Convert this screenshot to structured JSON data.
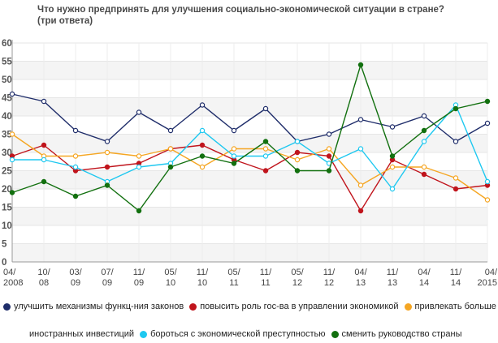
{
  "title_line1": "Что нужно предпринять для улучшения социально-экономической ситуации в стране?",
  "title_line2": "(три ответа)",
  "chart_data": {
    "type": "line",
    "title": "Что нужно предпринять для улучшения социально-экономической ситуации в стране? (три ответа)",
    "xlabel": "",
    "ylabel": "",
    "ylim": [
      0,
      60
    ],
    "yticks": [
      0,
      5,
      10,
      15,
      20,
      25,
      30,
      35,
      40,
      45,
      50,
      55,
      60
    ],
    "grid": "horizontal bands",
    "legend_position": "bottom",
    "categories": [
      [
        "04/",
        "2008"
      ],
      [
        "10/",
        "08"
      ],
      [
        "03/",
        "09"
      ],
      [
        "07/",
        "09"
      ],
      [
        "11/",
        "09"
      ],
      [
        "05/",
        "10"
      ],
      [
        "11/",
        "10"
      ],
      [
        "05/",
        "11"
      ],
      [
        "11/",
        "11"
      ],
      [
        "05/",
        "12"
      ],
      [
        "11/",
        "12"
      ],
      [
        "04/",
        "13"
      ],
      [
        "11/",
        "13"
      ],
      [
        "04/",
        "14"
      ],
      [
        "11/",
        "14"
      ],
      [
        "04/",
        "2015"
      ]
    ],
    "series": [
      {
        "name": "улучшить механизмы функц-ния законов",
        "color": "#1f2d6a",
        "values": [
          46,
          44,
          36,
          33,
          41,
          36,
          43,
          36,
          42,
          33,
          35,
          39,
          37,
          40,
          33,
          38
        ]
      },
      {
        "name": "повысить роль гос-ва в управлении экономикой",
        "color": "#c0141c",
        "values": [
          29,
          32,
          25,
          26,
          27,
          31,
          32,
          28,
          25,
          30,
          29,
          14,
          28,
          24,
          20,
          21
        ]
      },
      {
        "name": "привлекать больше иностранных инвестиций",
        "color": "#f5a623",
        "values": [
          35,
          29,
          29,
          30,
          29,
          31,
          26,
          31,
          31,
          28,
          31,
          21,
          26,
          26,
          23,
          17
        ]
      },
      {
        "name": "бороться с экономической преступностью",
        "color": "#1ec8f0",
        "values": [
          28,
          28,
          26,
          22,
          26,
          27,
          36,
          29,
          29,
          33,
          27,
          31,
          20,
          33,
          43,
          22
        ]
      },
      {
        "name": "сменить руководство страны",
        "color": "#12700f",
        "values": [
          19,
          22,
          18,
          21,
          14,
          26,
          29,
          27,
          33,
          25,
          25,
          54,
          29,
          36,
          42,
          44
        ]
      }
    ]
  },
  "legend": {
    "row1": [
      {
        "label": "улучшить механизмы функц-ния законов",
        "color": "#1f2d6a"
      },
      {
        "label": "повысить роль гос-ва в управлении экономикой",
        "color": "#c0141c"
      },
      {
        "label": "привлекать больше",
        "color": "#f5a623"
      }
    ],
    "row2_cont": "иностранных инвестиций",
    "row2": [
      {
        "label": "бороться с экономической преступностью",
        "color": "#1ec8f0"
      },
      {
        "label": "сменить руководство страны",
        "color": "#12700f"
      }
    ]
  }
}
